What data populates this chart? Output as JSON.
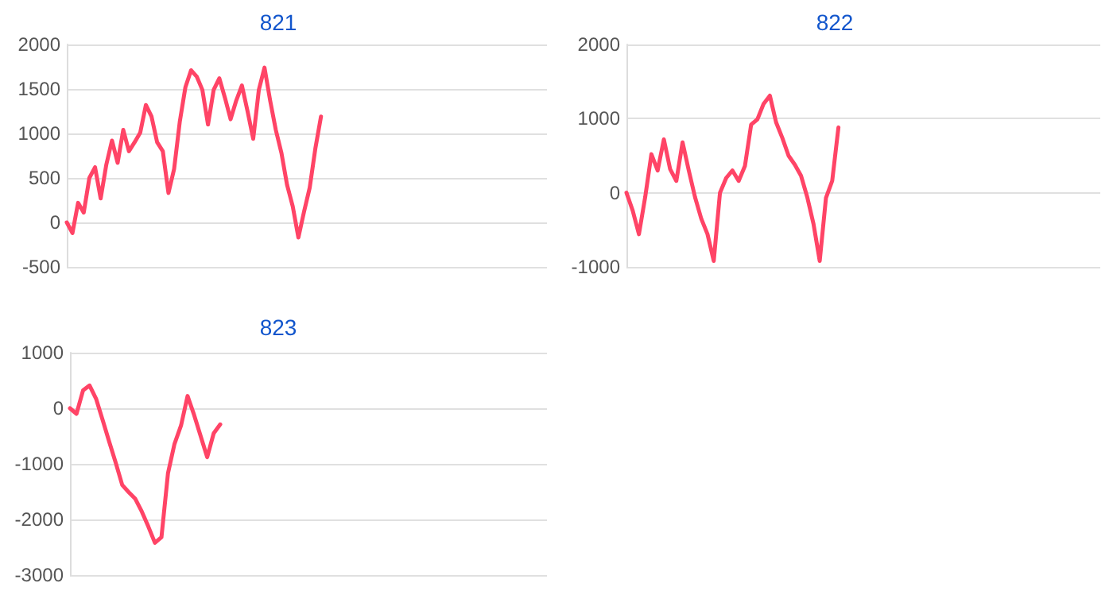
{
  "chart_data": [
    {
      "type": "line",
      "title": "821",
      "categories": [
        null,
        null,
        null,
        null,
        null,
        null,
        null,
        null,
        null,
        null,
        null,
        null,
        null,
        null,
        null,
        null,
        null,
        null,
        null,
        null,
        null,
        null,
        null,
        null,
        null,
        null,
        null,
        null,
        null,
        null,
        null,
        null,
        null,
        null,
        null,
        null,
        null,
        null,
        null,
        null,
        null,
        null,
        null,
        null,
        null,
        null,
        null,
        null,
        null,
        null,
        null,
        null,
        null,
        null,
        null,
        null,
        null,
        null,
        null,
        null,
        null,
        null,
        null,
        null,
        null,
        null,
        null,
        null,
        null,
        null,
        null,
        null,
        null,
        null,
        null,
        null,
        null,
        null,
        null,
        null,
        null,
        null,
        null,
        null,
        null,
        null
      ],
      "series": [
        {
          "color": "#ff4466",
          "values": [
            0,
            -120,
            220,
            110,
            500,
            620,
            270,
            650,
            920,
            670,
            1040,
            800,
            900,
            1010,
            1320,
            1190,
            900,
            800,
            330,
            600,
            1130,
            1520,
            1710,
            1640,
            1490,
            1100,
            1490,
            1620,
            1400,
            1160,
            1370,
            1540,
            1250,
            940,
            1490,
            1740,
            1370,
            1040,
            780,
            420,
            180,
            -170,
            120,
            390,
            830,
            1190,
            null,
            null,
            null,
            null,
            null,
            null,
            null,
            null,
            null,
            null,
            null,
            null,
            null,
            null,
            null,
            null,
            null,
            null,
            null,
            null,
            null,
            null,
            null,
            null,
            null,
            null,
            null,
            null,
            null,
            null,
            null,
            null,
            null,
            null,
            null,
            null,
            null,
            null,
            null,
            null
          ]
        }
      ],
      "ylim": [
        -500,
        2000
      ],
      "yticks": [
        -500,
        0,
        500,
        1000,
        1500,
        2000
      ],
      "grid": "y",
      "tick_labels": "y",
      "line_style": "solid"
    },
    {
      "type": "line",
      "title": "822",
      "categories": [
        null,
        null,
        null,
        null,
        null,
        null,
        null,
        null,
        null,
        null,
        null,
        null,
        null,
        null,
        null,
        null,
        null,
        null,
        null,
        null,
        null,
        null,
        null,
        null,
        null,
        null,
        null,
        null,
        null,
        null,
        null,
        null,
        null,
        null,
        null,
        null,
        null,
        null,
        null,
        null,
        null,
        null,
        null,
        null,
        null,
        null,
        null,
        null,
        null,
        null,
        null,
        null,
        null,
        null,
        null,
        null,
        null,
        null,
        null,
        null,
        null,
        null,
        null,
        null,
        null,
        null,
        null,
        null,
        null,
        null,
        null,
        null,
        null,
        null,
        null,
        null,
        null
      ],
      "series": [
        {
          "color": "#ff4466",
          "values": [
            0,
            -240,
            -560,
            -60,
            520,
            300,
            720,
            320,
            160,
            680,
            300,
            -60,
            -350,
            -560,
            -920,
            0,
            200,
            300,
            160,
            360,
            920,
            990,
            1200,
            1310,
            950,
            740,
            500,
            380,
            230,
            -60,
            -420,
            -920,
            -70,
            160,
            880,
            null,
            null,
            null,
            null,
            null,
            null,
            null,
            null,
            null,
            null,
            null,
            null,
            null,
            null,
            null,
            null,
            null,
            null,
            null,
            null,
            null,
            null,
            null,
            null,
            null,
            null,
            null,
            null,
            null,
            null,
            null,
            null,
            null,
            null,
            null,
            null,
            null,
            null,
            null,
            null,
            null,
            null
          ]
        }
      ],
      "ylim": [
        -1000,
        2000
      ],
      "yticks": [
        -1000,
        0,
        1000,
        2000
      ],
      "grid": "y",
      "tick_labels": "y",
      "line_style": "solid"
    },
    {
      "type": "line",
      "title": "823",
      "categories": [
        null,
        null,
        null,
        null,
        null,
        null,
        null,
        null,
        null,
        null,
        null,
        null,
        null,
        null,
        null,
        null,
        null,
        null,
        null,
        null,
        null,
        null,
        null,
        null,
        null,
        null,
        null,
        null,
        null,
        null,
        null,
        null,
        null,
        null,
        null,
        null,
        null,
        null,
        null,
        null,
        null,
        null,
        null,
        null,
        null,
        null,
        null,
        null,
        null,
        null,
        null,
        null,
        null,
        null,
        null,
        null,
        null,
        null,
        null,
        null,
        null,
        null,
        null,
        null,
        null,
        null,
        null,
        null,
        null,
        null,
        null,
        null,
        null,
        null
      ],
      "series": [
        {
          "color": "#ff4466",
          "values": [
            0,
            -100,
            320,
            410,
            170,
            -210,
            -600,
            -980,
            -1380,
            -1510,
            -1630,
            -1860,
            -2130,
            -2420,
            -2320,
            -1170,
            -640,
            -310,
            220,
            -120,
            -500,
            -880,
            -450,
            -290,
            null,
            null,
            null,
            null,
            null,
            null,
            null,
            null,
            null,
            null,
            null,
            null,
            null,
            null,
            null,
            null,
            null,
            null,
            null,
            null,
            null,
            null,
            null,
            null,
            null,
            null,
            null,
            null,
            null,
            null,
            null,
            null,
            null,
            null,
            null,
            null,
            null,
            null,
            null,
            null,
            null,
            null,
            null,
            null,
            null,
            null,
            null,
            null,
            null,
            null
          ]
        }
      ],
      "ylim": [
        -3000,
        1000
      ],
      "yticks": [
        -3000,
        -2000,
        -1000,
        0,
        1000
      ],
      "grid": "y",
      "tick_labels": "y",
      "line_style": "solid"
    }
  ]
}
